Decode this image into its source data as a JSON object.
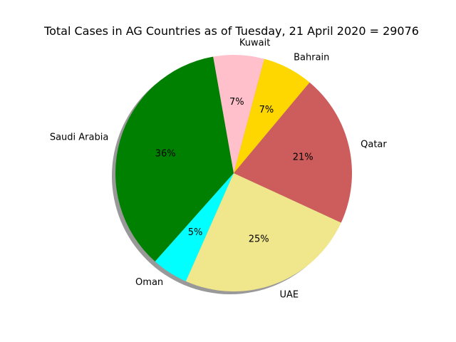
{
  "chart_data": {
    "type": "pie",
    "title": "Total Cases in AG Countries as of Tuesday, 21 April 2020 = 29076",
    "start_angle_deg": 100,
    "direction": "counterclockwise",
    "shadow": true,
    "slices": [
      {
        "label": "Saudi Arabia",
        "percent": 36,
        "percent_label": "36%",
        "color": "#008000"
      },
      {
        "label": "Oman",
        "percent": 5,
        "percent_label": "5%",
        "color": "#00ffff"
      },
      {
        "label": "UAE",
        "percent": 25,
        "percent_label": "25%",
        "color": "#f0e68c"
      },
      {
        "label": "Qatar",
        "percent": 21,
        "percent_label": "21%",
        "color": "#cd5c5c"
      },
      {
        "label": "Bahrain",
        "percent": 7,
        "percent_label": "7%",
        "color": "#ffd700"
      },
      {
        "label": "Kuwait",
        "percent": 7,
        "percent_label": "7%",
        "color": "#ffc0cb"
      }
    ]
  }
}
